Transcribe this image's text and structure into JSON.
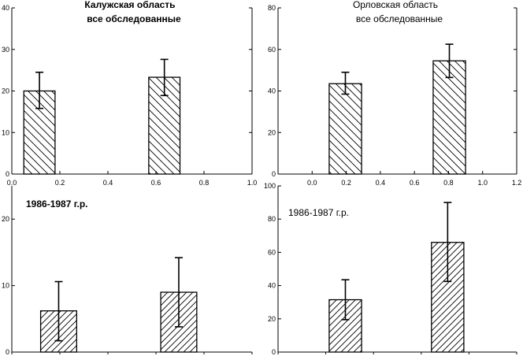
{
  "chart_data": [
    {
      "type": "bar",
      "title": "Калужская область",
      "subtitle": "все обследованные",
      "ylim": [
        0,
        40
      ],
      "yticks": [
        "0",
        "10",
        "20",
        "30",
        "40"
      ],
      "xlim": [
        0,
        1.0
      ],
      "xticks": [
        "0.0",
        "0.2",
        "0.4",
        "0.6",
        "0.8",
        "1.0"
      ],
      "bars": [
        {
          "x0": 0.05,
          "x1": 0.18,
          "value": 20.0,
          "err_low": 15.8,
          "err_high": 24.5
        },
        {
          "x0": 0.57,
          "x1": 0.7,
          "value": 23.3,
          "err_low": 18.9,
          "err_high": 27.6
        }
      ]
    },
    {
      "type": "bar",
      "title": "Орловская область",
      "subtitle": "все обследованные",
      "ylim": [
        0,
        80
      ],
      "yticks": [
        "0",
        "20",
        "40",
        "60",
        "80"
      ],
      "xlim": [
        -0.2,
        1.2
      ],
      "xticks": [
        "0.0",
        "0.2",
        "0.4",
        "0.6",
        "0.8",
        "1.0",
        "1.2"
      ],
      "bars": [
        {
          "x0": 0.1,
          "x1": 0.29,
          "value": 43.5,
          "err_low": 38.5,
          "err_high": 49.0
        },
        {
          "x0": 0.71,
          "x1": 0.9,
          "value": 54.5,
          "err_low": 46.5,
          "err_high": 62.5
        }
      ]
    },
    {
      "type": "bar",
      "title": "1986-1987 г.р.",
      "subtitle": "",
      "ylim": [
        0,
        25
      ],
      "yticks": [
        "0",
        "10",
        "20"
      ],
      "xlim": [
        0,
        1.0
      ],
      "xticks": [],
      "bars": [
        {
          "x0": 0.12,
          "x1": 0.27,
          "value": 6.2,
          "err_low": 1.7,
          "err_high": 10.6
        },
        {
          "x0": 0.62,
          "x1": 0.77,
          "value": 9.0,
          "err_low": 3.8,
          "err_high": 14.2
        }
      ]
    },
    {
      "type": "bar",
      "title": "1986-1987 г.р.",
      "subtitle": "",
      "ylim": [
        0,
        100
      ],
      "yticks": [
        "0",
        "20",
        "40",
        "60",
        "80",
        "100"
      ],
      "xlim": [
        -0.2,
        1.2
      ],
      "xticks": [],
      "bars": [
        {
          "x0": 0.1,
          "x1": 0.29,
          "value": 31.5,
          "err_low": 19.5,
          "err_high": 43.5
        },
        {
          "x0": 0.7,
          "x1": 0.89,
          "value": 66.0,
          "err_low": 42.5,
          "err_high": 90.0
        }
      ]
    }
  ]
}
